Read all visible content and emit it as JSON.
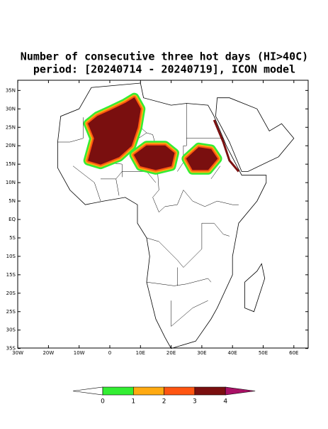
{
  "header": {
    "title_lines": [
      "Number of consecutive three hot days (HI>40C)",
      "period: [20240714 - 20240719], ICON model"
    ]
  },
  "map": {
    "lat_labels": [
      "35N",
      "30N",
      "25N",
      "20N",
      "15N",
      "10N",
      "5N",
      "EQ",
      "5S",
      "10S",
      "15S",
      "20S",
      "25S",
      "30S",
      "35S"
    ],
    "lon_labels": [
      "30W",
      "20W",
      "10W",
      "0",
      "10E",
      "20E",
      "30E",
      "40E",
      "50E",
      "60E"
    ]
  },
  "colorbar": {
    "labels": [
      "0",
      "1",
      "2",
      "3",
      "4"
    ],
    "colors": [
      "#ffffff",
      "#33ee33",
      "#ffaa11",
      "#ff5511",
      "#7a0f0f",
      "#aa1166"
    ]
  }
}
